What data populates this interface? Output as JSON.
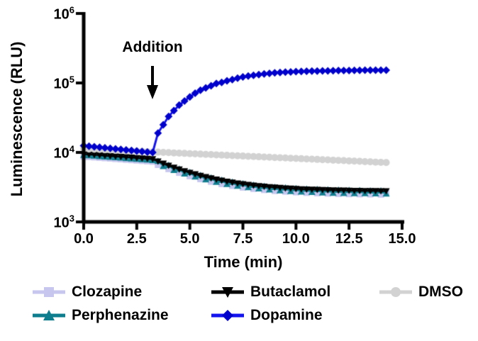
{
  "chart_data": {
    "type": "line",
    "title": "",
    "xlabel": "Time (min)",
    "ylabel": "Luminescence (RLU)",
    "annotation": {
      "text": "Addition",
      "arrow_points_to_x_min": 3.25
    },
    "x_axis": {
      "min": 0,
      "max": 15,
      "ticks": [
        0,
        2.5,
        5,
        7.5,
        10,
        12.5,
        15
      ],
      "tick_labels": [
        "0.0",
        "2.5",
        "5.0",
        "7.5",
        "10.0",
        "12.5",
        "15.0"
      ]
    },
    "y_axis": {
      "scale": "log10",
      "min_exponent": 3,
      "max_exponent": 6,
      "tick_exponents": [
        3,
        4,
        5,
        6
      ],
      "tick_base": "10"
    },
    "grid": false,
    "legend_position": "bottom",
    "x": [
      0,
      0.25,
      0.5,
      0.75,
      1,
      1.25,
      1.5,
      1.75,
      2,
      2.25,
      2.5,
      2.75,
      3,
      3.25,
      3.5,
      3.75,
      4,
      4.25,
      4.5,
      4.75,
      5,
      5.25,
      5.5,
      5.75,
      6,
      6.25,
      6.5,
      6.75,
      7,
      7.25,
      7.5,
      7.75,
      8,
      8.25,
      8.5,
      8.75,
      9,
      9.25,
      9.5,
      9.75,
      10,
      10.25,
      10.5,
      10.75,
      11,
      11.25,
      11.5,
      11.75,
      12,
      12.25,
      12.5,
      12.75,
      13,
      13.25,
      13.5,
      13.75,
      14,
      14.25
    ],
    "series": [
      {
        "name": "Clozapine",
        "marker": "square",
        "color": "#c6c6ee",
        "values": [
          8740,
          8630,
          8520,
          8410,
          8300,
          8200,
          8090,
          7990,
          7880,
          7780,
          7680,
          7580,
          7490,
          7390,
          6630,
          6570,
          5780,
          5760,
          5110,
          5130,
          4570,
          4610,
          4140,
          4200,
          3800,
          3870,
          3520,
          3620,
          3310,
          3410,
          3130,
          3260,
          3000,
          3120,
          2890,
          3020,
          2800,
          2940,
          2740,
          2870,
          2680,
          2810,
          2630,
          2780,
          2600,
          2740,
          2570,
          2710,
          2540,
          2690,
          2520,
          2670,
          2510,
          2660,
          2500,
          2650,
          2480,
          2640
        ]
      },
      {
        "name": "Perphenazine",
        "marker": "triangle-up",
        "color": "#0e7d8d",
        "values": [
          9150,
          9030,
          8920,
          8800,
          8690,
          8580,
          8470,
          8360,
          8250,
          8150,
          8040,
          7940,
          7840,
          7730,
          7520,
          6340,
          6550,
          5560,
          5800,
          4950,
          5180,
          4460,
          4690,
          4060,
          4310,
          3740,
          3990,
          3500,
          3750,
          3300,
          3550,
          3140,
          3390,
          3010,
          3280,
          2920,
          3170,
          2830,
          3100,
          2760,
          3030,
          2720,
          2980,
          2680,
          2940,
          2640,
          2910,
          2610,
          2880,
          2590,
          2860,
          2570,
          2840,
          2570,
          2820,
          2560,
          2810,
          2550
        ]
      },
      {
        "name": "Butaclamol",
        "marker": "triangle-down",
        "color": "#000000",
        "values": [
          9500,
          9380,
          9260,
          9140,
          9020,
          8910,
          8790,
          8680,
          8570,
          8460,
          8350,
          8240,
          8140,
          8030,
          7440,
          6930,
          6480,
          6080,
          5730,
          5410,
          5120,
          4870,
          4640,
          4440,
          4260,
          4090,
          3950,
          3820,
          3710,
          3600,
          3510,
          3430,
          3360,
          3290,
          3240,
          3190,
          3140,
          3100,
          3060,
          3030,
          3000,
          2970,
          2950,
          2930,
          2910,
          2890,
          2880,
          2860,
          2850,
          2840,
          2830,
          2820,
          2810,
          2800,
          2800,
          2790,
          2780,
          2780
        ]
      },
      {
        "name": "DMSO",
        "marker": "circle",
        "color": "#d2d2d2",
        "values": [
          11300,
          11210,
          11120,
          11030,
          10940,
          10850,
          10760,
          10680,
          10590,
          10500,
          10420,
          10340,
          10250,
          10170,
          10090,
          10010,
          9930,
          9850,
          9770,
          9690,
          9610,
          9530,
          9460,
          9380,
          9310,
          9230,
          9160,
          9080,
          9010,
          8940,
          8870,
          8800,
          8730,
          8660,
          8590,
          8520,
          8450,
          8380,
          8320,
          8250,
          8180,
          8120,
          8050,
          7990,
          7930,
          7860,
          7800,
          7740,
          7680,
          7620,
          7560,
          7500,
          7440,
          7380,
          7320,
          7260,
          7200,
          7150
        ]
      },
      {
        "name": "Dopamine",
        "marker": "diamond",
        "color": "#1414ee",
        "marker_color": "#0000cc",
        "values": [
          12500,
          12280,
          12060,
          11850,
          11650,
          11440,
          11240,
          11050,
          10850,
          10660,
          10470,
          10290,
          10110,
          10000,
          19000,
          25000,
          33000,
          40000,
          48000,
          55000,
          63000,
          71000,
          78500,
          85000,
          91000,
          98000,
          102000,
          107000,
          112000,
          117000,
          122000,
          126000,
          129000,
          132000,
          135000,
          137000,
          140000,
          141500,
          143000,
          144000,
          145500,
          146500,
          147000,
          148000,
          148500,
          149500,
          149500,
          150000,
          150500,
          151000,
          151300,
          151600,
          152000,
          152200,
          152500,
          152700,
          153000,
          153000
        ]
      }
    ],
    "legend_display_order": [
      0,
      2,
      3,
      1,
      4
    ]
  }
}
